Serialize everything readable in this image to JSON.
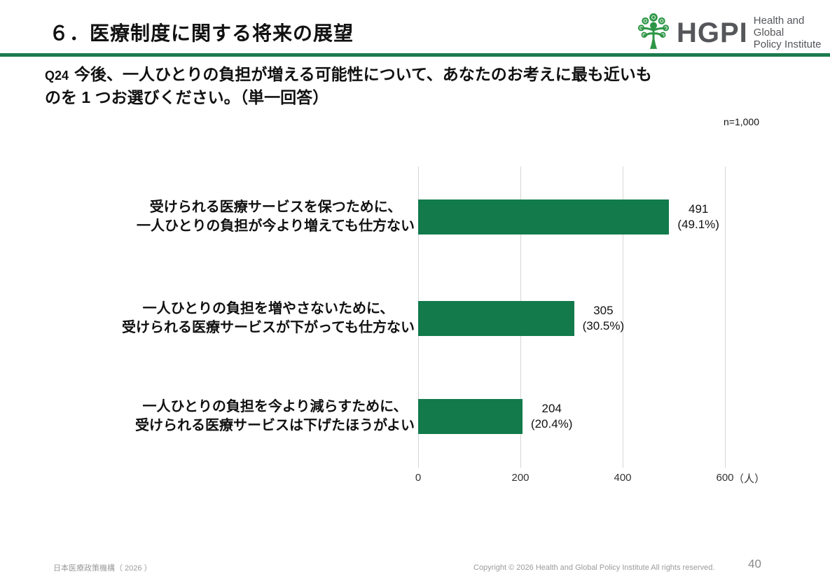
{
  "slide": {
    "title": "６．医療制度に関する将来の展望",
    "page_number": "40"
  },
  "logo": {
    "abbr": "HGPI",
    "name_line1": "Health and Global",
    "name_line2": "Policy Institute",
    "green": "#2d9646",
    "gray": "#54565a"
  },
  "question": {
    "number": "Q24",
    "line1": "今後、一人ひとりの負担が増える可能性について、あなたのお考えに最も近いも",
    "line2": "のを 1 つお選びください。（単一回答）"
  },
  "sample_size": "n=1,000",
  "chart_data": {
    "type": "bar",
    "orientation": "horizontal",
    "title": "",
    "categories": [
      [
        "受けられる医療サービスを保つために、",
        "一人ひとりの負担が今より増えても仕方ない"
      ],
      [
        "一人ひとりの負担を増やさないために、",
        "受けられる医療サービスが下がっても仕方ない"
      ],
      [
        "一人ひとりの負担を今より減らすために、",
        "受けられる医療サービスは下げたほうがよい"
      ]
    ],
    "values": [
      491,
      305,
      204
    ],
    "percentages": [
      49.1,
      30.5,
      20.4
    ],
    "value_labels": [
      [
        "491",
        "(49.1%)"
      ],
      [
        "305",
        "(30.5%)"
      ],
      [
        "204",
        "(20.4%)"
      ]
    ],
    "xlim": [
      0,
      600
    ],
    "xticks": [
      0,
      200,
      400,
      600
    ],
    "unit_label": "（人）",
    "bar_color": "#127a4b",
    "grid": true,
    "legend": "none"
  },
  "footer": {
    "left": "日本医療政策機構（ 2026 ）",
    "copyright": "Copyright © 2026 Health and Global Policy Institute  All rights reserved."
  }
}
